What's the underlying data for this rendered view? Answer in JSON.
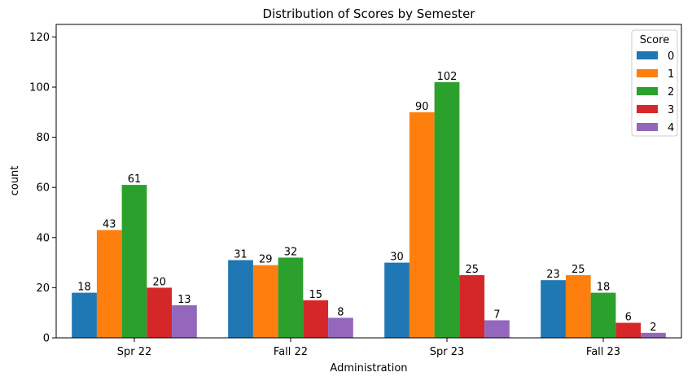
{
  "chart_data": {
    "type": "bar",
    "title": "Distribution of Scores by Semester",
    "xlabel": "Administration",
    "ylabel": "count",
    "ylim": [
      0,
      125
    ],
    "yticks": [
      0,
      20,
      40,
      60,
      80,
      100,
      120
    ],
    "categories": [
      "Spr 22",
      "Fall 22",
      "Spr 23",
      "Fall 23"
    ],
    "legend": {
      "title": "Score",
      "placement": "top-right"
    },
    "grid": false,
    "series": [
      {
        "name": "0",
        "color": "#1f77b4",
        "values": [
          18,
          31,
          30,
          23
        ]
      },
      {
        "name": "1",
        "color": "#ff7f0e",
        "values": [
          43,
          29,
          90,
          25
        ]
      },
      {
        "name": "2",
        "color": "#2ca02c",
        "values": [
          61,
          32,
          102,
          18
        ]
      },
      {
        "name": "3",
        "color": "#d62728",
        "values": [
          20,
          15,
          25,
          6
        ]
      },
      {
        "name": "4",
        "color": "#9467bd",
        "values": [
          13,
          8,
          7,
          2
        ]
      }
    ]
  }
}
